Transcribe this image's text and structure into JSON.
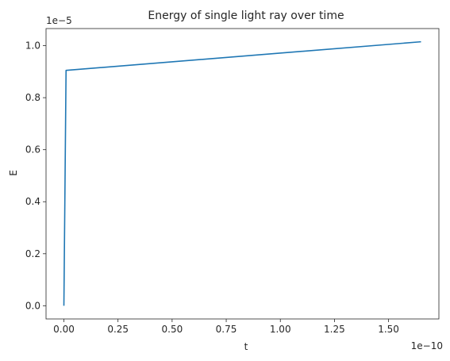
{
  "chart_data": {
    "type": "line",
    "title": "Energy of single light ray over time",
    "xlabel": "t",
    "ylabel": "E",
    "x_offset_label": "1e−10",
    "y_offset_label": "1e−5",
    "x_scale": 1e-10,
    "y_scale": 1e-05,
    "xlim": [
      -0.0825,
      1.7325
    ],
    "ylim": [
      -0.05075,
      1.06575
    ],
    "x_ticks": [
      0.0,
      0.25,
      0.5,
      0.75,
      1.0,
      1.25,
      1.5
    ],
    "x_tick_labels": [
      "0.00",
      "0.25",
      "0.50",
      "0.75",
      "1.00",
      "1.25",
      "1.50"
    ],
    "y_ticks": [
      0.0,
      0.2,
      0.4,
      0.6,
      0.8,
      1.0
    ],
    "y_tick_labels": [
      "0.0",
      "0.2",
      "0.4",
      "0.6",
      "0.8",
      "1.0"
    ],
    "grid": false,
    "series": [
      {
        "color": "#1f77b4",
        "x": [
          0.0,
          0.01,
          1.65
        ],
        "y": [
          0.0,
          0.905,
          1.015
        ]
      }
    ]
  }
}
